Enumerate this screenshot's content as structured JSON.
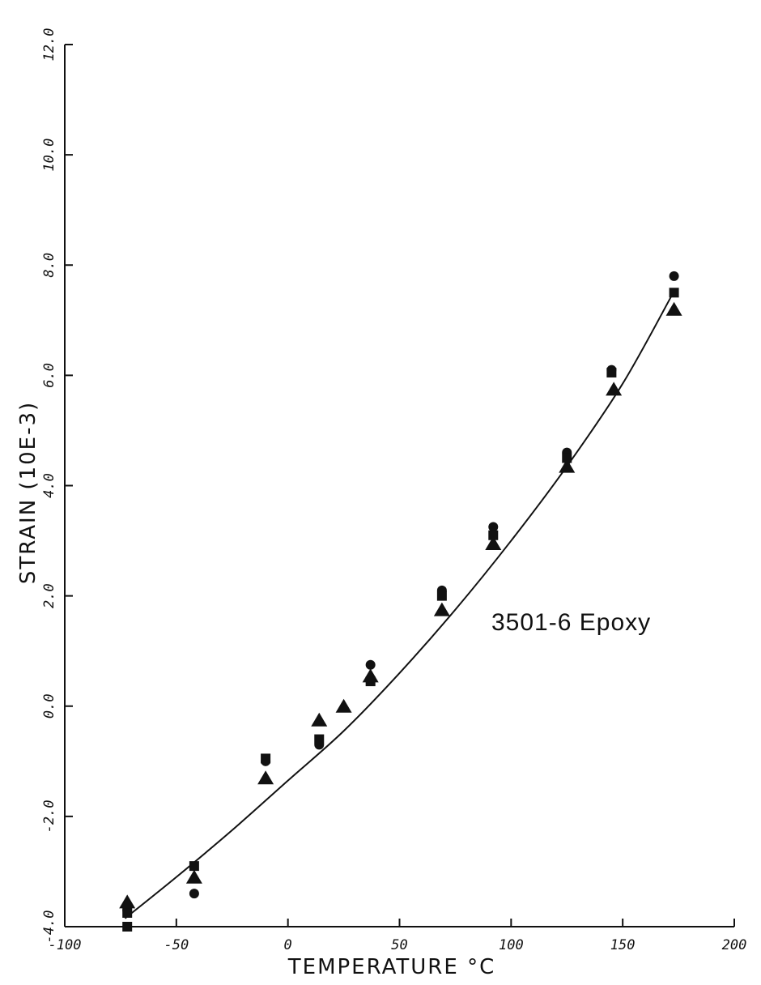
{
  "chart_data": {
    "type": "scatter",
    "xlabel": "TEMPERATURE °C",
    "ylabel": "STRAIN (10E-3)",
    "annotation": "3501-6 Epoxy",
    "xlim": [
      -100,
      200
    ],
    "ylim": [
      -4.0,
      12.0
    ],
    "x_ticks": [
      "-100",
      "-50",
      "0",
      "50",
      "100",
      "150",
      "200"
    ],
    "y_ticks": [
      "-4.0",
      "-2.0",
      "0.0",
      "2.0",
      "4.0",
      "6.0",
      "8.0",
      "10.0",
      "12.0"
    ],
    "grid": false,
    "legend": "none",
    "series": [
      {
        "marker": "circle",
        "x": [
          -72,
          -42,
          -10,
          14,
          37,
          69,
          92,
          125,
          145,
          173
        ],
        "y": [
          -3.7,
          -3.4,
          -1.0,
          -0.7,
          0.75,
          2.1,
          3.25,
          4.6,
          6.1,
          7.8
        ]
      },
      {
        "marker": "square",
        "x": [
          -72,
          -72,
          -42,
          -10,
          14,
          37,
          69,
          92,
          125,
          145,
          173
        ],
        "y": [
          -3.75,
          -4.0,
          -2.9,
          -0.95,
          -0.6,
          0.45,
          2.0,
          3.1,
          4.5,
          6.05,
          7.5
        ]
      },
      {
        "marker": "triangle",
        "x": [
          -72,
          -42,
          -10,
          14,
          25,
          37,
          69,
          92,
          125,
          146,
          173
        ],
        "y": [
          -3.55,
          -3.1,
          -1.3,
          -0.25,
          0.0,
          0.55,
          1.75,
          2.95,
          4.35,
          5.75,
          7.2
        ]
      }
    ],
    "fit_curve": {
      "x": [
        -73,
        -50,
        -25,
        0,
        25,
        50,
        75,
        100,
        125,
        150,
        172
      ],
      "y": [
        -3.85,
        -3.1,
        -2.25,
        -1.35,
        -0.45,
        0.6,
        1.75,
        3.0,
        4.35,
        5.85,
        7.45
      ]
    }
  }
}
